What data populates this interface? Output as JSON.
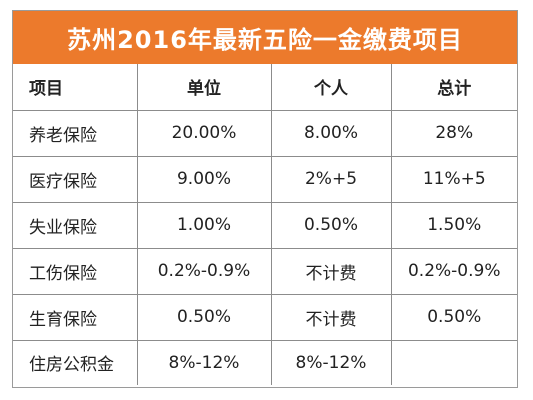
{
  "title": "苏州2016年最新五险一金缴费项目",
  "colors": {
    "title_background": "#ec7a2c",
    "title_text": "#ffffff",
    "border": "#8c8c8c"
  },
  "table": {
    "headers": [
      "项目",
      "单位",
      "个人",
      "总计"
    ],
    "rows": [
      [
        "养老保险",
        "20.00%",
        "8.00%",
        "28%"
      ],
      [
        "医疗保险",
        "9.00%",
        "2%+5",
        "11%+5"
      ],
      [
        "失业保险",
        "1.00%",
        "0.50%",
        "1.50%"
      ],
      [
        "工伤保险",
        "0.2%-0.9%",
        "不计费",
        "0.2%-0.9%"
      ],
      [
        "生育保险",
        "0.50%",
        "不计费",
        "0.50%"
      ],
      [
        "住房公积金",
        "8%-12%",
        "8%-12%",
        ""
      ]
    ]
  }
}
